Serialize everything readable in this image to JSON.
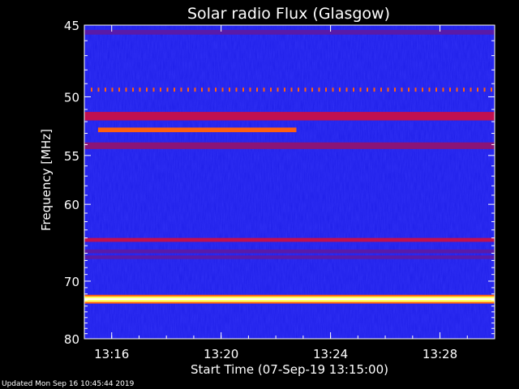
{
  "chart_data": {
    "type": "heatmap",
    "title": "Solar radio Flux (Glasgow)",
    "xlabel": "Start Time (07-Sep-19 13:15:00)",
    "ylabel": "Frequency [MHz]",
    "x_range": [
      "13:15",
      "13:30"
    ],
    "x_ticks": [
      "13:16",
      "13:20",
      "13:24",
      "13:28"
    ],
    "y_range": [
      45,
      80
    ],
    "y_ticks": [
      45,
      50,
      55,
      60,
      70,
      80
    ],
    "y_scale": "reciprocal",
    "grid": false,
    "colormap": "blue-red-yellow-white",
    "background_level": "blue",
    "bands": [
      {
        "freq_from": 45.3,
        "freq_to": 45.6,
        "intensity": "medium",
        "time_from": "13:15",
        "time_to": "13:30"
      },
      {
        "freq_from": 49.3,
        "freq_to": 49.6,
        "intensity": "dotted-red",
        "time_from": "13:15",
        "time_to": "13:30"
      },
      {
        "freq_from": 51.2,
        "freq_to": 51.9,
        "intensity": "high",
        "time_from": "13:15",
        "time_to": "13:30"
      },
      {
        "freq_from": 52.5,
        "freq_to": 52.9,
        "intensity": "very-high",
        "time_from": "13:15:30",
        "time_to": "13:22:45"
      },
      {
        "freq_from": 53.8,
        "freq_to": 54.4,
        "intensity": "medium-high",
        "time_from": "13:15",
        "time_to": "13:30"
      },
      {
        "freq_from": 64.0,
        "freq_to": 64.5,
        "intensity": "high",
        "time_from": "13:15",
        "time_to": "13:30"
      },
      {
        "freq_from": 65.5,
        "freq_to": 66.0,
        "intensity": "medium",
        "time_from": "13:15",
        "time_to": "13:30"
      },
      {
        "freq_from": 66.3,
        "freq_to": 66.8,
        "intensity": "medium",
        "time_from": "13:15",
        "time_to": "13:30"
      },
      {
        "freq_from": 72.4,
        "freq_to": 73.3,
        "intensity": "max",
        "time_from": "13:15",
        "time_to": "13:30"
      }
    ],
    "colors": {
      "background": "#000000",
      "low": "#1c1ce6",
      "medium": "#5a1aa8",
      "high": "#c01050",
      "very_high": "#ff6010",
      "max": "#ffff60"
    }
  },
  "footer": {
    "updated": "Updated Mon Sep 16 10:45:44 2019"
  }
}
